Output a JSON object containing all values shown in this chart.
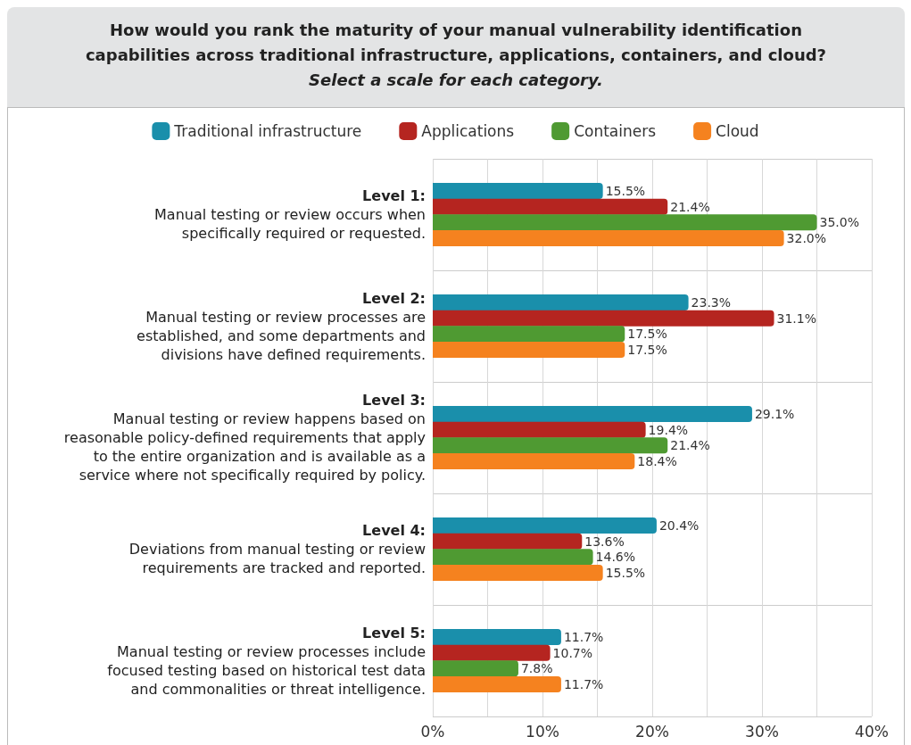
{
  "chart_data": {
    "type": "bar",
    "orientation": "horizontal",
    "title": "How would you rank the maturity of your manual vulnerability identification\ncapabilities across traditional infrastructure, applications, containers, and cloud?",
    "subtitle": "Select a scale for each category.",
    "categories": [
      "Level 1:\nManual testing or review occurs when\nspecifically required or requested.",
      "Level 2:\nManual testing or review processes are\nestablished, and some departments and\ndivisions have defined requirements.",
      "Level 3:\nManual testing or review happens based on\nreasonable policy-defined requirements that apply\nto the entire organization and is available as a\nservice where not specifically required by policy.",
      "Level 4:\nDeviations from manual testing or review\nrequirements are tracked and reported.",
      "Level 5:\nManual testing or review processes include\nfocused testing based on historical test data\nand commonalities or threat intelligence."
    ],
    "series": [
      {
        "name": "Traditional infrastructure",
        "color": "#1a8fab",
        "values": [
          15.5,
          23.3,
          29.1,
          20.4,
          11.7
        ],
        "value_labels": [
          "15.5%",
          "23.3%",
          "29.1%",
          "20.4%",
          "11.7%"
        ]
      },
      {
        "name": "Applications",
        "color": "#b52520",
        "values": [
          21.4,
          31.1,
          19.4,
          13.6,
          10.7
        ],
        "value_labels": [
          "21.4%",
          "31.1%",
          "19.4%",
          "13.6%",
          "10.7%"
        ]
      },
      {
        "name": "Containers",
        "color": "#4f9a32",
        "values": [
          35.0,
          17.5,
          21.4,
          14.6,
          7.8
        ],
        "value_labels": [
          "35.0%",
          "17.5%",
          "21.4%",
          "14.6%",
          "7.8%"
        ]
      },
      {
        "name": "Cloud",
        "color": "#f5821f",
        "values": [
          32.0,
          17.5,
          18.4,
          15.5,
          11.7
        ],
        "value_labels": [
          "32.0%",
          "17.5%",
          "18.4%",
          "15.5%",
          "11.7%"
        ]
      }
    ],
    "xlim": [
      0,
      40
    ],
    "xticks": [
      {
        "value": 0,
        "label": "0%"
      },
      {
        "value": 5,
        "label": null
      },
      {
        "value": 10,
        "label": "10%"
      },
      {
        "value": 15,
        "label": null
      },
      {
        "value": 20,
        "label": "20%"
      },
      {
        "value": 25,
        "label": null
      },
      {
        "value": 30,
        "label": "30%"
      },
      {
        "value": 35,
        "label": null
      },
      {
        "value": 40,
        "label": "40%"
      }
    ],
    "grid": true,
    "legend": "top"
  }
}
